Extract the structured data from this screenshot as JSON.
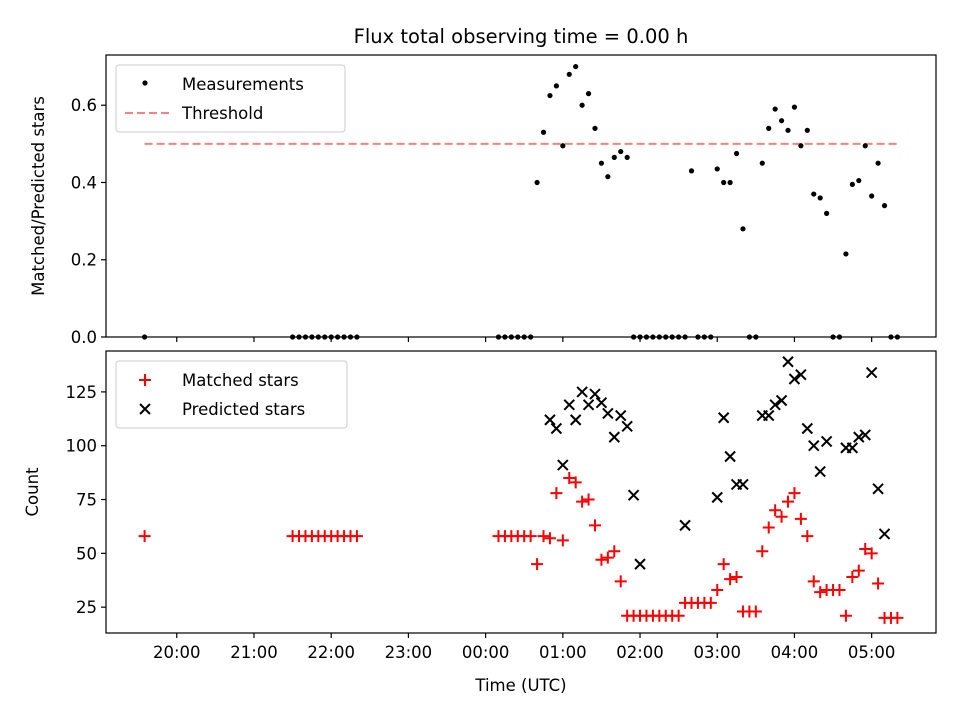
{
  "chart_data": [
    {
      "type": "scatter",
      "title": "Flux total observing time = 0.00 h",
      "ylabel": "Matched/Predicted stars",
      "xlabel": "",
      "ylim": [
        0,
        0.73
      ],
      "yticks": [
        0.0,
        0.2,
        0.4,
        0.6
      ],
      "ytick_labels": [
        "0.0",
        "0.2",
        "0.4",
        "0.6"
      ],
      "legend_position": "top-left",
      "threshold": {
        "name": "Threshold",
        "value": 0.5,
        "x_range": [
          "19:35",
          "05:20"
        ],
        "color": "#ff7f7f"
      },
      "series": [
        {
          "name": "Measurements",
          "color": "#000000",
          "x": [
            "19:35",
            "21:30",
            "21:35",
            "21:40",
            "21:45",
            "21:50",
            "21:55",
            "22:00",
            "22:05",
            "22:10",
            "22:15",
            "22:20",
            "00:10",
            "00:15",
            "00:20",
            "00:25",
            "00:30",
            "00:35",
            "00:40",
            "00:45",
            "00:50",
            "00:55",
            "01:00",
            "01:05",
            "01:10",
            "01:15",
            "01:20",
            "01:25",
            "01:30",
            "01:35",
            "01:40",
            "01:45",
            "01:50",
            "01:55",
            "02:00",
            "02:05",
            "02:10",
            "02:15",
            "02:20",
            "02:25",
            "02:30",
            "02:35",
            "02:40",
            "02:45",
            "02:50",
            "02:55",
            "03:00",
            "03:05",
            "03:10",
            "03:15",
            "03:20",
            "03:25",
            "03:30",
            "03:35",
            "03:40",
            "03:45",
            "03:50",
            "03:55",
            "04:00",
            "04:05",
            "04:10",
            "04:15",
            "04:20",
            "04:25",
            "04:30",
            "04:35",
            "04:40",
            "04:45",
            "04:50",
            "04:55",
            "05:00",
            "05:05",
            "05:10",
            "05:15",
            "05:20"
          ],
          "y": [
            0,
            0,
            0,
            0,
            0,
            0,
            0,
            0,
            0,
            0,
            0,
            0,
            0,
            0,
            0,
            0,
            0,
            0,
            0.4,
            0.53,
            0.625,
            0.65,
            0.495,
            0.68,
            0.7,
            0.6,
            0.63,
            0.54,
            0.45,
            0.415,
            0.465,
            0.48,
            0.465,
            0,
            0,
            0,
            0,
            0,
            0,
            0,
            0,
            0,
            0.43,
            0,
            0,
            0,
            0.435,
            0.4,
            0.4,
            0.475,
            0.28,
            0,
            0,
            0.45,
            0.54,
            0.59,
            0.56,
            0.535,
            0.595,
            0.495,
            0.535,
            0.37,
            0.36,
            0.32,
            0,
            0,
            0.215,
            0.395,
            0.405,
            0.495,
            0.365,
            0.45,
            0.34,
            0,
            0
          ]
        }
      ]
    },
    {
      "type": "scatter",
      "title": "",
      "xlabel": "Time (UTC)",
      "ylabel": "Count",
      "ylim": [
        13,
        144
      ],
      "yticks": [
        25,
        50,
        75,
        100,
        125
      ],
      "ytick_labels": [
        "25",
        "50",
        "75",
        "100",
        "125"
      ],
      "xlim": [
        "19:05",
        "05:50"
      ],
      "xticks": [
        "20:00",
        "21:00",
        "22:00",
        "23:00",
        "00:00",
        "01:00",
        "02:00",
        "03:00",
        "04:00",
        "05:00"
      ],
      "xtick_labels": [
        "20:00",
        "21:00",
        "22:00",
        "23:00",
        "00:00",
        "01:00",
        "02:00",
        "03:00",
        "04:00",
        "05:00"
      ],
      "legend_position": "top-left",
      "series": [
        {
          "name": "Matched stars",
          "marker": "plus",
          "color": "#ff0000",
          "x": [
            "19:35",
            "21:30",
            "21:35",
            "21:40",
            "21:45",
            "21:50",
            "21:55",
            "22:00",
            "22:05",
            "22:10",
            "22:15",
            "22:20",
            "00:10",
            "00:15",
            "00:20",
            "00:25",
            "00:30",
            "00:35",
            "00:40",
            "00:45",
            "00:50",
            "00:55",
            "01:00",
            "01:05",
            "01:10",
            "01:15",
            "01:20",
            "01:25",
            "01:30",
            "01:35",
            "01:40",
            "01:45",
            "01:50",
            "01:55",
            "02:00",
            "02:05",
            "02:10",
            "02:15",
            "02:20",
            "02:25",
            "02:30",
            "02:35",
            "02:40",
            "02:45",
            "02:50",
            "02:55",
            "03:00",
            "03:05",
            "03:10",
            "03:15",
            "03:20",
            "03:25",
            "03:30",
            "03:35",
            "03:40",
            "03:45",
            "03:50",
            "03:55",
            "04:00",
            "04:05",
            "04:10",
            "04:15",
            "04:20",
            "04:25",
            "04:30",
            "04:35",
            "04:40",
            "04:45",
            "04:50",
            "04:55",
            "05:00",
            "05:05",
            "05:10",
            "05:15",
            "05:20"
          ],
          "y": [
            58,
            58,
            58,
            58,
            58,
            58,
            58,
            58,
            58,
            58,
            58,
            58,
            58,
            58,
            58,
            58,
            58,
            58,
            45,
            58,
            57,
            78,
            56,
            85,
            83,
            74,
            75,
            63,
            47,
            48,
            51,
            37,
            21,
            21,
            21,
            21,
            21,
            21,
            21,
            21,
            21,
            27,
            27,
            27,
            27,
            27,
            33,
            45,
            38,
            39,
            23,
            23,
            23,
            51,
            62,
            70,
            67,
            74,
            78,
            66,
            58,
            37,
            32,
            33,
            33,
            33,
            21,
            39,
            42,
            52,
            50,
            36,
            20,
            20,
            20
          ]
        },
        {
          "name": "Predicted stars",
          "marker": "x",
          "color": "#000000",
          "x": [
            "00:50",
            "00:55",
            "01:00",
            "01:05",
            "01:10",
            "01:15",
            "01:20",
            "01:25",
            "01:30",
            "01:35",
            "01:40",
            "01:45",
            "01:50",
            "01:55",
            "02:00",
            "02:05",
            "02:10",
            "02:15",
            "02:20",
            "02:25",
            "02:30",
            "02:35",
            "02:40",
            "02:45",
            "02:50",
            "02:55",
            "03:00",
            "03:05",
            "03:10",
            "03:15",
            "03:20",
            "03:25",
            "03:30",
            "03:35",
            "03:40",
            "03:45",
            "03:50",
            "03:55",
            "04:00",
            "04:05",
            "04:10",
            "04:15",
            "04:20",
            "04:25",
            "04:30",
            "04:35",
            "04:40",
            "04:45",
            "04:50",
            "04:55",
            "05:00",
            "05:05",
            "05:10",
            "05:15",
            "05:20"
          ],
          "y": [
            112,
            108,
            91,
            119,
            112,
            125,
            119,
            124,
            120,
            115,
            104,
            114,
            109,
            77,
            45,
            null,
            null,
            null,
            null,
            null,
            null,
            63,
            null,
            null,
            null,
            null,
            76,
            113,
            95,
            82,
            82,
            null,
            null,
            114,
            114,
            119,
            121,
            139,
            131,
            133,
            108,
            100,
            88,
            102,
            null,
            null,
            99,
            99,
            104,
            105,
            134,
            80,
            59,
            null,
            null
          ]
        }
      ]
    }
  ]
}
